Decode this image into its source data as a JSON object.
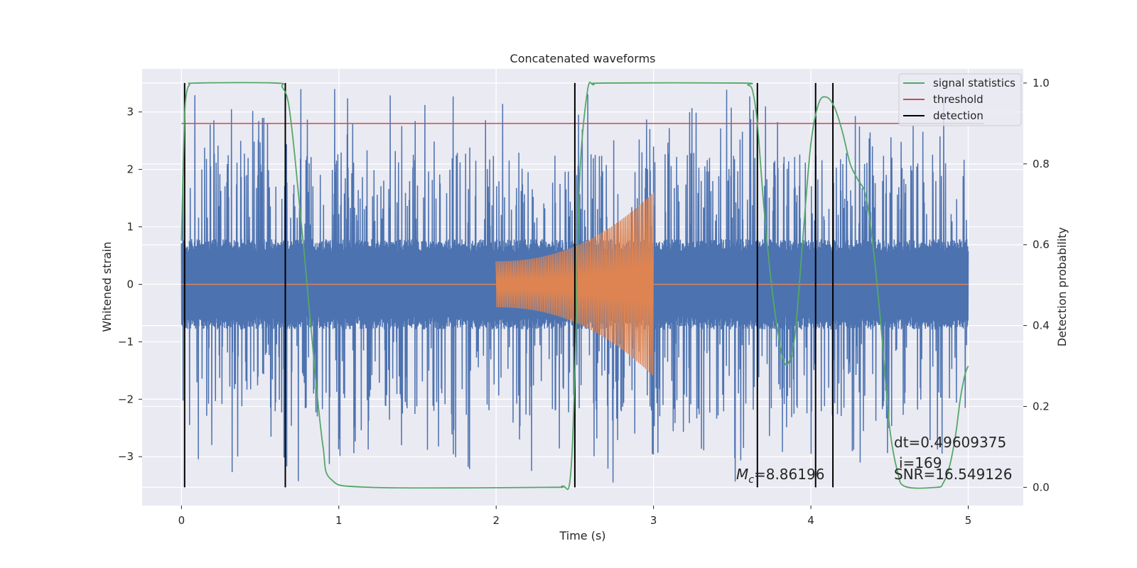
{
  "chart_data": {
    "type": "line",
    "title": "Concatenated waveforms",
    "xlabel": "Time (s)",
    "ylabel": "Whitened strain",
    "y2label": "Detection probability",
    "xlim": [
      -0.25,
      5.35
    ],
    "ylim": [
      -3.85,
      3.75
    ],
    "y2lim": [
      -0.045,
      1.035
    ],
    "xticks": [
      0,
      1,
      2,
      3,
      4,
      5
    ],
    "yticks": [
      -3,
      -2,
      -1,
      0,
      1,
      2,
      3
    ],
    "y2ticks": [
      0.0,
      0.2,
      0.4,
      0.6,
      0.8,
      1.0
    ],
    "xtick_labels": [
      "0",
      "1",
      "2",
      "3",
      "4",
      "5"
    ],
    "ytick_labels": [
      "−3",
      "−2",
      "−1",
      "0",
      "1",
      "2",
      "3"
    ],
    "y2tick_labels": [
      "0.0",
      "0.2",
      "0.4",
      "0.6",
      "0.8",
      "1.0"
    ],
    "grid": true,
    "legend_position": "top-right",
    "legend": [
      "signal statistics",
      "threshold",
      "detection"
    ],
    "colors": {
      "strain": "#4c72b0",
      "injection": "#dd8452",
      "signal": "#55a868",
      "threshold": "#c44e52",
      "detection": "#000000",
      "background": "#eaeaf2",
      "grid": "#ffffff"
    },
    "strain": {
      "t_range": [
        0,
        5
      ],
      "core_amplitude": 0.75,
      "max_amplitude": 3.4,
      "min_amplitude": -3.5
    },
    "injection": {
      "t_range": [
        2.0,
        3.0
      ],
      "amplitude_start": 0.4,
      "amplitude_end": 1.6
    },
    "threshold": {
      "value": 0.9,
      "x_range": [
        0.0,
        5.1
      ]
    },
    "signal_statistics": {
      "t": [
        0.0,
        0.01,
        0.02,
        0.03,
        0.05,
        0.1,
        0.6,
        0.64,
        0.68,
        0.72,
        0.78,
        0.85,
        0.9,
        0.95,
        1.2,
        2.3,
        2.42,
        2.47,
        2.5,
        2.53,
        2.58,
        2.62,
        2.7,
        3.55,
        3.6,
        3.63,
        3.66,
        3.7,
        3.75,
        3.8,
        3.83,
        3.86,
        3.9,
        3.95,
        4.0,
        4.05,
        4.1,
        4.15,
        4.2,
        4.25,
        4.3,
        4.35,
        4.4,
        4.45,
        4.5,
        4.55,
        4.6,
        4.8,
        4.84,
        4.88,
        4.92,
        4.95,
        4.98,
        5.0
      ],
      "p": [
        0.61,
        0.78,
        0.92,
        0.97,
        0.995,
        1.0,
        1.0,
        0.99,
        0.95,
        0.82,
        0.58,
        0.28,
        0.1,
        0.02,
        0.0,
        0.0,
        0.003,
        0.02,
        0.28,
        0.76,
        0.98,
        0.996,
        1.0,
        1.0,
        0.995,
        0.98,
        0.9,
        0.7,
        0.5,
        0.36,
        0.31,
        0.31,
        0.38,
        0.62,
        0.85,
        0.95,
        0.965,
        0.94,
        0.88,
        0.8,
        0.76,
        0.72,
        0.58,
        0.38,
        0.15,
        0.04,
        0.002,
        0.0,
        0.01,
        0.05,
        0.13,
        0.22,
        0.28,
        0.3
      ]
    },
    "detections": [
      0.02,
      0.66,
      2.5,
      3.66,
      4.03,
      4.14
    ],
    "annotations": {
      "mc_symbol": "M",
      "mc_sub": "c",
      "mc_value": "=8.86196",
      "dt": "dt=0.49609375",
      "i": "i=169",
      "snr": "SNR=16.549126"
    }
  }
}
